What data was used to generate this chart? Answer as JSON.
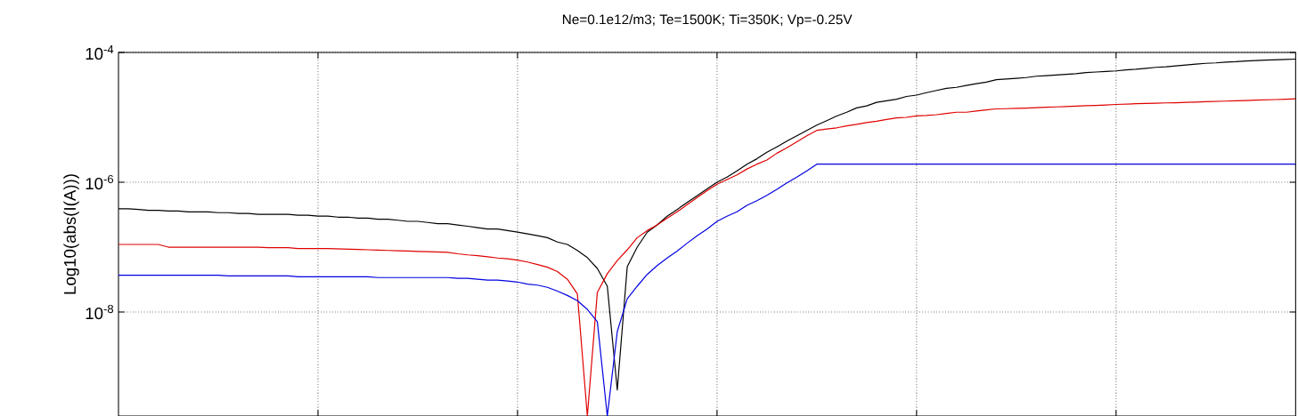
{
  "chart_data": {
    "type": "line",
    "title": "Ne=0.1e12/m3; Te=1500K; Ti=350K; Vp=-0.25V",
    "ylabel": "Log10(abs(I(A)))",
    "log": true,
    "grid": true,
    "categories": [
      null,
      null,
      null,
      null,
      null,
      null,
      null,
      null,
      null,
      null,
      null,
      null,
      null,
      null,
      null,
      null,
      null,
      null,
      null,
      null,
      null,
      null,
      null,
      null,
      null,
      null,
      null,
      null,
      null,
      null,
      null,
      null,
      null,
      null,
      null,
      null,
      null,
      null,
      null,
      null,
      null,
      null,
      null,
      null,
      null,
      null,
      null,
      null,
      null,
      null,
      null,
      null,
      null,
      null,
      null,
      null,
      null,
      null,
      null,
      null,
      null,
      null,
      null,
      null,
      null,
      null,
      null,
      null,
      null,
      null,
      null,
      null,
      null,
      null,
      null,
      null,
      null,
      null,
      null,
      null,
      null,
      null,
      null,
      null,
      null,
      null,
      null,
      null,
      null,
      null,
      null,
      null,
      null,
      null,
      null,
      null,
      null,
      null,
      null,
      null,
      null,
      null,
      null,
      null,
      null,
      null,
      null,
      null,
      null,
      null,
      null,
      null,
      null,
      null,
      null,
      null,
      null,
      null,
      null
    ],
    "ylim": [
      2.5e-10,
      0.0001
    ],
    "yticks": [
      {
        "value": 1e-08,
        "label": "10$^{-8}$"
      },
      {
        "value": 1e-06,
        "label": "10$^{-6}$"
      },
      {
        "value": 0.0001,
        "label": "10$^{-4}$"
      }
    ],
    "series": [
      {
        "color": "#000000",
        "values": [
          3.9e-07,
          3.9e-07,
          3.8e-07,
          3.7e-07,
          3.7e-07,
          3.6e-07,
          3.6e-07,
          3.5e-07,
          3.5e-07,
          3.5e-07,
          3.4e-07,
          3.4e-07,
          3.3e-07,
          3.3e-07,
          3.2e-07,
          3.2e-07,
          3.2e-07,
          3.2e-07,
          3.1e-07,
          3.1e-07,
          3e-07,
          3e-07,
          2.9e-07,
          2.9e-07,
          2.8e-07,
          2.8e-07,
          2.7e-07,
          2.7e-07,
          2.6e-07,
          2.5e-07,
          2.5e-07,
          2.4e-07,
          2.3e-07,
          2.3e-07,
          2.2e-07,
          2.1e-07,
          2e-07,
          1.9e-07,
          1.9e-07,
          1.8e-07,
          1.7e-07,
          1.6e-07,
          1.5e-07,
          1.4e-07,
          1.2e-07,
          1.1e-07,
          8.9e-08,
          6.9e-08,
          4.7e-08,
          2.5e-08,
          6.3e-10,
          5e-08,
          1e-07,
          1.7e-07,
          2.2e-07,
          3e-07,
          3.8e-07,
          4.9e-07,
          6.2e-07,
          7.9e-07,
          1e-06,
          1.2e-06,
          1.5e-06,
          1.9e-06,
          2.3e-06,
          2.9e-06,
          3.5e-06,
          4.3e-06,
          5.2e-06,
          6.3e-06,
          7.6e-06,
          8.9e-06,
          1.05e-05,
          1.2e-05,
          1.4e-05,
          1.5e-05,
          1.7e-05,
          1.8e-05,
          1.9e-05,
          2.1e-05,
          2.2e-05,
          2.4e-05,
          2.6e-05,
          2.8e-05,
          2.9e-05,
          3.1e-05,
          3.3e-05,
          3.5e-05,
          3.8e-05,
          3.9e-05,
          4e-05,
          4.1e-05,
          4.3e-05,
          4.4e-05,
          4.5e-05,
          4.6e-05,
          4.7e-05,
          4.9e-05,
          5e-05,
          5.1e-05,
          5.2e-05,
          5.4e-05,
          5.5e-05,
          5.7e-05,
          5.9e-05,
          6e-05,
          6.2e-05,
          6.4e-05,
          6.6e-05,
          6.8e-05,
          6.9e-05,
          7.1e-05,
          7.2e-05,
          7.4e-05,
          7.5e-05,
          7.6e-05,
          7.7e-05,
          7.8e-05,
          7.9e-05
        ]
      },
      {
        "color": "#e00000",
        "values": [
          1.1e-07,
          1.1e-07,
          1.1e-07,
          1.1e-07,
          1.1e-07,
          1e-07,
          1e-07,
          1e-07,
          1e-07,
          1e-07,
          1e-07,
          1e-07,
          1e-07,
          1e-07,
          1e-07,
          9.8e-08,
          9.8e-08,
          9.8e-08,
          9.5e-08,
          9.5e-08,
          9.5e-08,
          9.5e-08,
          9.4e-08,
          9.3e-08,
          9.2e-08,
          9.1e-08,
          9e-08,
          8.9e-08,
          8.8e-08,
          8.7e-08,
          8.6e-08,
          8.5e-08,
          8.4e-08,
          8.3e-08,
          7.9e-08,
          7.6e-08,
          7.4e-08,
          7.1e-08,
          6.8e-08,
          6.6e-08,
          6.3e-08,
          5.9e-08,
          5.4e-08,
          4.9e-08,
          4.2e-08,
          3.2e-08,
          1.9e-08,
          2.5e-10,
          2e-08,
          3.9e-08,
          6.2e-08,
          9.1e-08,
          1.4e-07,
          1.8e-07,
          2.2e-07,
          2.8e-07,
          3.5e-07,
          4.5e-07,
          5.8e-07,
          7.4e-07,
          9.3e-07,
          1.1e-06,
          1.3e-06,
          1.6e-06,
          1.9e-06,
          2.2e-06,
          2.8e-06,
          3.4e-06,
          4.2e-06,
          5.2e-06,
          6.3e-06,
          6.6e-06,
          6.9e-06,
          7.4e-06,
          7.8e-06,
          8.3e-06,
          8.7e-06,
          9.3e-06,
          9.8e-06,
          1e-05,
          1.05e-05,
          1.07e-05,
          1.1e-05,
          1.15e-05,
          1.2e-05,
          1.2e-05,
          1.25e-05,
          1.3e-05,
          1.35e-05,
          1.36e-05,
          1.38e-05,
          1.39e-05,
          1.41e-05,
          1.43e-05,
          1.45e-05,
          1.47e-05,
          1.49e-05,
          1.51e-05,
          1.53e-05,
          1.55e-05,
          1.58e-05,
          1.6e-05,
          1.62e-05,
          1.64e-05,
          1.65e-05,
          1.67e-05,
          1.68e-05,
          1.7e-05,
          1.72e-05,
          1.74e-05,
          1.76e-05,
          1.78e-05,
          1.8e-05,
          1.82e-05,
          1.84e-05,
          1.86e-05,
          1.88e-05,
          1.9e-05,
          1.93e-05
        ]
      },
      {
        "color": "#0000e0",
        "values": [
          3.7e-08,
          3.7e-08,
          3.7e-08,
          3.7e-08,
          3.7e-08,
          3.7e-08,
          3.7e-08,
          3.7e-08,
          3.7e-08,
          3.7e-08,
          3.7e-08,
          3.6e-08,
          3.6e-08,
          3.6e-08,
          3.6e-08,
          3.6e-08,
          3.6e-08,
          3.6e-08,
          3.5e-08,
          3.5e-08,
          3.5e-08,
          3.5e-08,
          3.5e-08,
          3.5e-08,
          3.5e-08,
          3.5e-08,
          3.4e-08,
          3.4e-08,
          3.4e-08,
          3.4e-08,
          3.4e-08,
          3.4e-08,
          3.4e-08,
          3.4e-08,
          3.3e-08,
          3.3e-08,
          3.2e-08,
          3.1e-08,
          3.1e-08,
          3e-08,
          2.9e-08,
          2.7e-08,
          2.6e-08,
          2.4e-08,
          2.1e-08,
          1.8e-08,
          1.5e-08,
          1.1e-08,
          7.1e-09,
          2.5e-10,
          5e-09,
          1.6e-08,
          2.5e-08,
          3.8e-08,
          5.2e-08,
          6.8e-08,
          8.7e-08,
          1.15e-07,
          1.5e-07,
          1.9e-07,
          2.5e-07,
          3e-07,
          3.5e-07,
          4.4e-07,
          5.2e-07,
          6.3e-07,
          7.8e-07,
          9.8e-07,
          1.2e-06,
          1.5e-06,
          1.9e-06,
          1.9e-06,
          1.9e-06,
          1.9e-06,
          1.9e-06,
          1.9e-06,
          1.9e-06,
          1.9e-06,
          1.9e-06,
          1.9e-06,
          1.9e-06,
          1.9e-06,
          1.9e-06,
          1.9e-06,
          1.9e-06,
          1.9e-06,
          1.9e-06,
          1.9e-06,
          1.9e-06,
          1.9e-06,
          1.9e-06,
          1.9e-06,
          1.9e-06,
          1.9e-06,
          1.9e-06,
          1.9e-06,
          1.9e-06,
          1.9e-06,
          1.9e-06,
          1.9e-06,
          1.9e-06,
          1.9e-06,
          1.9e-06,
          1.9e-06,
          1.9e-06,
          1.9e-06,
          1.9e-06,
          1.9e-06,
          1.9e-06,
          1.9e-06,
          1.9e-06,
          1.9e-06,
          1.9e-06,
          1.9e-06,
          1.9e-06,
          1.9e-06,
          1.9e-06,
          1.9e-06,
          1.9e-06
        ]
      }
    ]
  }
}
